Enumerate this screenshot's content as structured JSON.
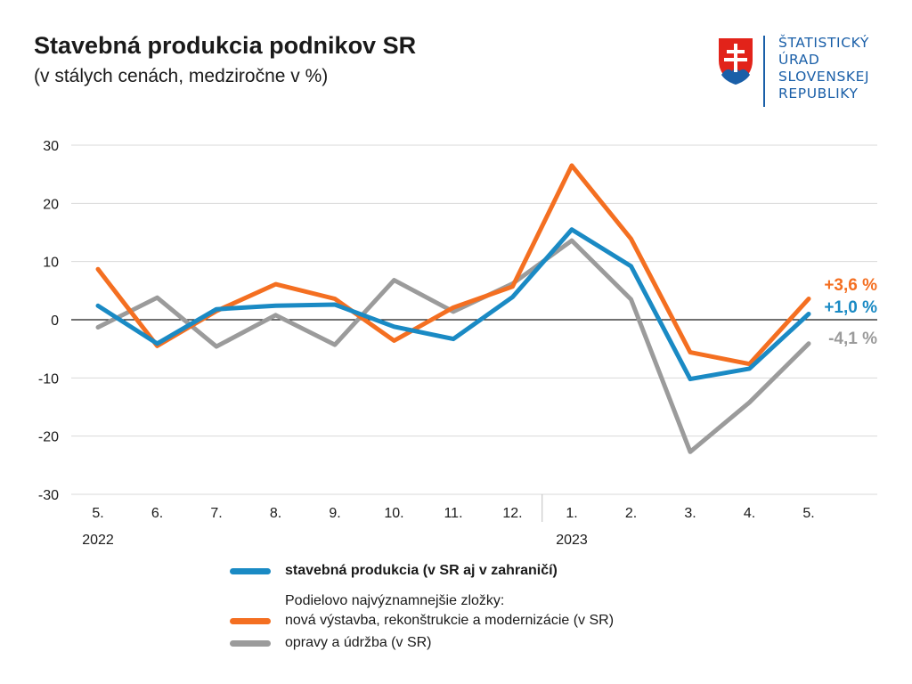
{
  "header": {
    "title": "Stavebná produkcia podnikov SR",
    "subtitle": "(v stálych cenách, medziročne v %)"
  },
  "logo": {
    "lines": [
      "ŠTATISTICKÝ",
      "ÚRAD",
      "SLOVENSKEJ",
      "REPUBLIKY"
    ],
    "name": "slovak-coat-of-arms"
  },
  "colors": {
    "blue": "#1a8ac4",
    "orange": "#f46f21",
    "gray": "#9b9b9b",
    "grid": "#d9d9d9",
    "zero": "#1a1a1a",
    "logo_blue": "#1a5fa8"
  },
  "chart_data": {
    "type": "line",
    "title": "Stavebná produkcia podnikov SR",
    "subtitle": "(v stálych cenách, medziročne v %)",
    "categories": [
      "5.",
      "6.",
      "7.",
      "8.",
      "9.",
      "10.",
      "11.",
      "12.",
      "1.",
      "2.",
      "3.",
      "4.",
      "5."
    ],
    "year_labels": [
      {
        "label": "2022",
        "index": 0
      },
      {
        "label": "2023",
        "index": 8
      }
    ],
    "ylim": [
      -30,
      30
    ],
    "yticks": [
      30,
      20,
      10,
      0,
      -10,
      -20,
      -30
    ],
    "grid": true,
    "series": [
      {
        "name": "stavebná produkcia (v SR aj v zahraničí)",
        "color": "#1a8ac4",
        "values": [
          2.4,
          -4.1,
          1.8,
          2.4,
          2.6,
          -1.2,
          -3.3,
          3.9,
          15.5,
          9.2,
          -10.2,
          -8.4,
          1.0
        ],
        "end_label": "+1,0 %"
      },
      {
        "name": "nová výstavba, rekonštrukcie a modernizácie (v SR)",
        "color": "#f46f21",
        "values": [
          8.7,
          -4.5,
          1.5,
          6.1,
          3.6,
          -3.6,
          2.1,
          5.7,
          26.5,
          13.9,
          -5.6,
          -7.6,
          3.6
        ],
        "end_label": "+3,6 %"
      },
      {
        "name": "opravy a údržba (v SR)",
        "color": "#9b9b9b",
        "values": [
          -1.3,
          3.8,
          -4.6,
          0.8,
          -4.3,
          6.8,
          1.4,
          6.2,
          13.6,
          3.5,
          -22.7,
          -14.2,
          -4.1
        ],
        "end_label": "-4,1 %"
      }
    ]
  },
  "legend": {
    "main": "stavebná produkcia (v SR aj v zahraničí)",
    "note": "Podielovo najvýznamnejšie zložky:",
    "item_orange": "nová výstavba, rekonštrukcie a modernizácie (v SR)",
    "item_gray": "opravy a údržba (v SR)"
  }
}
